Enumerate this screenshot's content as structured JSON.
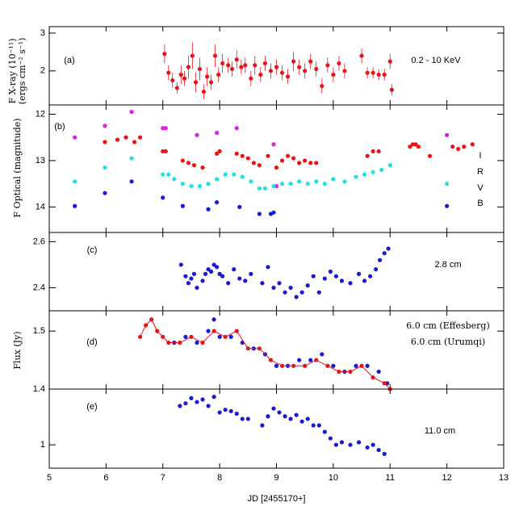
{
  "chart_data": [
    {
      "type": "scatter",
      "label": "(a)",
      "ylabel": [
        "F X-ray (10⁻¹¹)",
        "(ergs cm⁻² s⁻¹)"
      ],
      "xlim": [
        5,
        13
      ],
      "xticks": [
        5,
        6,
        7,
        8,
        9,
        10,
        11,
        12,
        13
      ],
      "ylim": [
        1.1,
        3.17
      ],
      "yticks": [
        2,
        3
      ],
      "series": [
        {
          "name": "0.2 - 10 KeV",
          "color": "#e8141b",
          "x": [
            7.03,
            7.1,
            7.17,
            7.25,
            7.32,
            7.38,
            7.45,
            7.52,
            7.58,
            7.65,
            7.72,
            7.78,
            7.85,
            7.92,
            7.98,
            8.05,
            8.15,
            8.22,
            8.3,
            8.38,
            8.45,
            8.55,
            8.62,
            8.72,
            8.8,
            8.9,
            9.0,
            9.1,
            9.2,
            9.3,
            9.4,
            9.5,
            9.6,
            9.7,
            9.8,
            9.9,
            10.0,
            10.1,
            10.2,
            10.5,
            10.6,
            10.7,
            10.8,
            10.9,
            11.0,
            11.03
          ],
          "values": [
            2.45,
            1.95,
            1.75,
            1.55,
            1.9,
            1.8,
            2.1,
            2.4,
            1.7,
            2.05,
            1.45,
            1.85,
            1.7,
            2.4,
            1.9,
            2.2,
            2.15,
            2.05,
            2.3,
            2.1,
            2.15,
            1.8,
            2.15,
            1.9,
            2.2,
            2.0,
            2.1,
            1.95,
            1.85,
            2.25,
            2.1,
            2.0,
            2.25,
            2.05,
            1.6,
            2.15,
            1.9,
            2.2,
            2.0,
            2.4,
            1.95,
            1.95,
            1.9,
            1.9,
            2.25,
            1.5
          ],
          "errors": [
            0.25,
            0.2,
            0.2,
            0.15,
            0.25,
            0.2,
            0.3,
            0.35,
            0.25,
            0.3,
            0.2,
            0.25,
            0.2,
            0.3,
            0.2,
            0.25,
            0.2,
            0.2,
            0.25,
            0.2,
            0.2,
            0.2,
            0.25,
            0.2,
            0.2,
            0.2,
            0.2,
            0.2,
            0.2,
            0.25,
            0.2,
            0.2,
            0.2,
            0.2,
            0.2,
            0.2,
            0.2,
            0.2,
            0.2,
            0.2,
            0.15,
            0.15,
            0.15,
            0.15,
            0.2,
            0.15
          ]
        }
      ]
    },
    {
      "type": "scatter",
      "label": "(b)",
      "ylabel": [
        "F Optical (magnitude)"
      ],
      "xlim": [
        5,
        13
      ],
      "xticks": [
        5,
        6,
        7,
        8,
        9,
        10,
        11,
        12,
        13
      ],
      "ylim": [
        14.55,
        11.8
      ],
      "yticks": [
        12,
        13,
        14
      ],
      "series": [
        {
          "name": "I",
          "color": "#e020e0",
          "x": [
            5.45,
            5.98,
            6.45,
            7.0,
            7.05,
            7.6,
            7.95,
            8.3,
            8.95,
            9.0,
            12.0
          ],
          "values": [
            12.5,
            12.25,
            11.95,
            12.3,
            12.3,
            12.45,
            12.4,
            12.3,
            12.65,
            13.55,
            12.45
          ]
        },
        {
          "name": "R",
          "color": "#ee1111",
          "x": [
            5.98,
            6.2,
            6.35,
            6.5,
            6.6,
            7.0,
            7.05,
            7.35,
            7.45,
            7.55,
            7.7,
            7.95,
            8.0,
            8.3,
            8.4,
            8.5,
            8.6,
            8.7,
            8.85,
            9.0,
            9.1,
            9.2,
            9.3,
            9.4,
            9.5,
            9.6,
            9.7,
            10.6,
            10.7,
            10.8,
            11.35,
            11.4,
            11.45,
            11.5,
            11.7,
            12.1,
            12.2,
            12.3,
            12.45
          ],
          "values": [
            12.6,
            12.55,
            12.5,
            12.6,
            12.5,
            12.8,
            12.8,
            13.0,
            13.05,
            13.1,
            13.15,
            12.85,
            12.8,
            12.85,
            12.9,
            12.95,
            13.05,
            13.1,
            12.9,
            13.15,
            13.0,
            12.9,
            12.95,
            13.05,
            13.0,
            13.05,
            13.05,
            12.9,
            12.8,
            12.8,
            12.7,
            12.65,
            12.65,
            12.7,
            12.9,
            12.7,
            12.75,
            12.7,
            12.65
          ]
        },
        {
          "name": "V",
          "color": "#22e0e0",
          "x": [
            5.45,
            5.98,
            6.45,
            7.0,
            7.1,
            7.2,
            7.35,
            7.5,
            7.65,
            7.8,
            7.95,
            8.1,
            8.25,
            8.4,
            8.55,
            8.7,
            8.8,
            8.95,
            9.1,
            9.25,
            9.4,
            9.55,
            9.7,
            9.85,
            10.0,
            10.2,
            10.4,
            10.55,
            10.7,
            10.85,
            11.0,
            12.0
          ],
          "values": [
            13.45,
            13.15,
            12.95,
            13.3,
            13.3,
            13.4,
            13.5,
            13.55,
            13.55,
            13.5,
            13.4,
            13.3,
            13.3,
            13.35,
            13.45,
            13.6,
            13.6,
            13.55,
            13.5,
            13.5,
            13.45,
            13.5,
            13.45,
            13.5,
            13.4,
            13.45,
            13.35,
            13.3,
            13.25,
            13.2,
            13.1,
            13.5
          ]
        },
        {
          "name": "B",
          "color": "#1a1ad0",
          "x": [
            5.45,
            5.98,
            6.45,
            7.0,
            7.35,
            7.8,
            7.95,
            8.35,
            8.7,
            8.9,
            8.95,
            12.0
          ],
          "values": [
            13.98,
            13.7,
            13.45,
            13.8,
            13.98,
            14.05,
            13.9,
            14.0,
            14.15,
            14.15,
            14.12,
            13.98
          ]
        }
      ]
    },
    {
      "type": "scatter",
      "label": "(c)",
      "xlim": [
        5,
        13
      ],
      "xticks": [
        5,
        6,
        7,
        8,
        9,
        10,
        11,
        12,
        13
      ],
      "ylim": [
        2.3,
        2.64
      ],
      "yticks": [
        2.4,
        2.6
      ],
      "series": [
        {
          "name": "2.8 cm",
          "color": "#1a1ad0",
          "x": [
            7.32,
            7.4,
            7.45,
            7.5,
            7.55,
            7.6,
            7.7,
            7.75,
            7.8,
            7.85,
            7.9,
            7.95,
            8.0,
            8.05,
            8.15,
            8.25,
            8.35,
            8.45,
            8.55,
            8.75,
            8.85,
            8.95,
            9.05,
            9.15,
            9.25,
            9.35,
            9.45,
            9.55,
            9.65,
            9.75,
            9.85,
            9.95,
            10.05,
            10.15,
            10.3,
            10.45,
            10.55,
            10.65,
            10.75,
            10.82,
            10.9,
            10.97
          ],
          "values": [
            2.5,
            2.45,
            2.42,
            2.44,
            2.46,
            2.4,
            2.43,
            2.46,
            2.48,
            2.47,
            2.5,
            2.49,
            2.46,
            2.45,
            2.42,
            2.48,
            2.44,
            2.43,
            2.46,
            2.42,
            2.49,
            2.4,
            2.42,
            2.38,
            2.4,
            2.36,
            2.38,
            2.41,
            2.45,
            2.38,
            2.44,
            2.47,
            2.45,
            2.43,
            2.42,
            2.46,
            2.43,
            2.45,
            2.48,
            2.52,
            2.55,
            2.57
          ]
        }
      ]
    },
    {
      "type": "scatter",
      "label": "(d)",
      "ylabel": [
        "Flux (Jy)"
      ],
      "xlim": [
        5,
        13
      ],
      "xticks": [
        5,
        6,
        7,
        8,
        9,
        10,
        11,
        12,
        13
      ],
      "ylim": [
        1.4,
        1.535
      ],
      "yticks": [
        1.4,
        1.5
      ],
      "series": [
        {
          "name": "6.0 cm (Effesberg)",
          "color": "#1a1ad0",
          "x": [
            7.2,
            7.4,
            7.6,
            7.8,
            7.9,
            8.0,
            8.2,
            8.4,
            8.6,
            8.8,
            9.0,
            9.2,
            9.4,
            9.6,
            9.8,
            10.0,
            10.2,
            10.4,
            10.6,
            10.8,
            10.95
          ],
          "values": [
            1.48,
            1.49,
            1.48,
            1.5,
            1.52,
            1.49,
            1.49,
            1.48,
            1.47,
            1.46,
            1.44,
            1.44,
            1.45,
            1.45,
            1.46,
            1.44,
            1.43,
            1.44,
            1.44,
            1.43,
            1.41
          ]
        },
        {
          "name": "6.0 cm (Urumqi)",
          "color": "#e8141b",
          "line": true,
          "x": [
            6.6,
            6.7,
            6.8,
            6.9,
            7.0,
            7.1,
            7.3,
            7.5,
            7.7,
            7.9,
            8.1,
            8.3,
            8.5,
            8.7,
            8.9,
            9.1,
            9.3,
            9.5,
            9.7,
            9.9,
            10.1,
            10.3,
            10.5,
            10.7,
            10.9,
            11.0
          ],
          "values": [
            1.49,
            1.51,
            1.52,
            1.5,
            1.49,
            1.48,
            1.48,
            1.49,
            1.48,
            1.5,
            1.49,
            1.5,
            1.47,
            1.47,
            1.45,
            1.44,
            1.44,
            1.44,
            1.45,
            1.44,
            1.43,
            1.43,
            1.44,
            1.42,
            1.41,
            1.4
          ]
        }
      ]
    },
    {
      "type": "scatter",
      "label": "(e)",
      "xlabel": "JD [2455170+]",
      "xlim": [
        5,
        13
      ],
      "xticks": [
        5,
        6,
        7,
        8,
        9,
        10,
        11,
        12,
        13
      ],
      "ylim": [
        0.82,
        1.43
      ],
      "yticks": [
        1
      ],
      "series": [
        {
          "name": "11.0 cm",
          "color": "#1a1ad0",
          "x": [
            7.3,
            7.4,
            7.5,
            7.6,
            7.7,
            7.8,
            7.9,
            8.0,
            8.1,
            8.2,
            8.3,
            8.4,
            8.5,
            8.75,
            8.85,
            8.95,
            9.05,
            9.15,
            9.25,
            9.35,
            9.45,
            9.55,
            9.65,
            9.75,
            9.85,
            9.95,
            10.05,
            10.15,
            10.3,
            10.45,
            10.6,
            10.7,
            10.8,
            10.9
          ],
          "values": [
            1.3,
            1.32,
            1.36,
            1.33,
            1.35,
            1.3,
            1.37,
            1.25,
            1.27,
            1.26,
            1.24,
            1.2,
            1.2,
            1.15,
            1.22,
            1.28,
            1.25,
            1.22,
            1.2,
            1.23,
            1.18,
            1.2,
            1.15,
            1.15,
            1.1,
            1.05,
            1.0,
            1.02,
            1.0,
            1.02,
            0.98,
            1.0,
            0.96,
            0.93
          ]
        }
      ]
    }
  ]
}
